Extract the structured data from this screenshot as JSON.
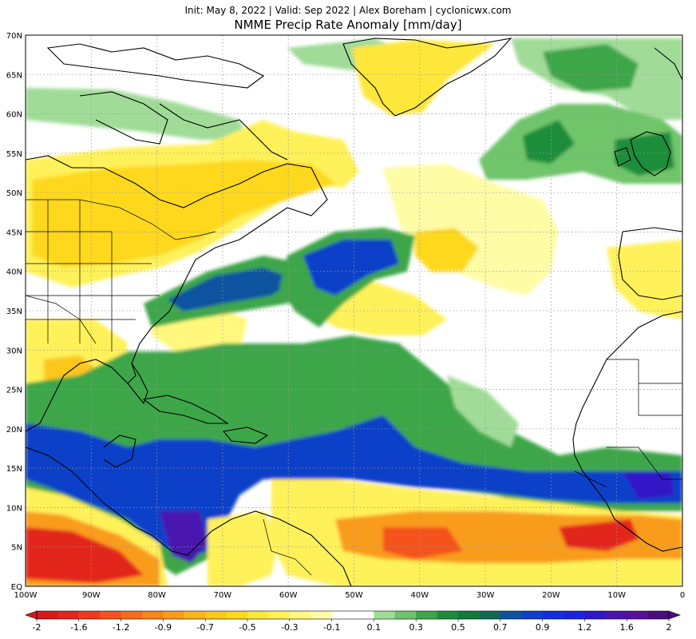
{
  "header": {
    "init_line": "Init: May 8, 2022 | Valid: Sep 2022 | Alex Boreham | cyclonicwx.com",
    "title": "NMME Precip Rate Anomaly [mm/day]"
  },
  "map": {
    "projection": "equirectangular",
    "lon_range": [
      -100,
      0
    ],
    "lat_range": [
      0,
      70
    ],
    "gridlines": "dotted",
    "lat_tick_labels": [
      "EQ",
      "5N",
      "10N",
      "15N",
      "20N",
      "25N",
      "30N",
      "35N",
      "40N",
      "45N",
      "50N",
      "55N",
      "60N",
      "65N",
      "70N"
    ],
    "lon_tick_labels": [
      "100W",
      "90W",
      "80W",
      "70W",
      "60W",
      "50W",
      "40W",
      "30W",
      "20W",
      "10W",
      "0"
    ],
    "lat_ticks": [
      0,
      5,
      10,
      15,
      20,
      25,
      30,
      35,
      40,
      45,
      50,
      55,
      60,
      65,
      70
    ],
    "lon_ticks": [
      -100,
      -90,
      -80,
      -70,
      -60,
      -50,
      -40,
      -30,
      -20,
      -10,
      0
    ]
  },
  "colorbar": {
    "labels": [
      "-2",
      "-1.6",
      "-1.2",
      "-0.9",
      "-0.7",
      "-0.5",
      "-0.3",
      "-0.1",
      "0.1",
      "0.3",
      "0.5",
      "0.7",
      "0.9",
      "1.2",
      "1.6",
      "2"
    ],
    "values": [
      -2,
      -1.8,
      -1.6,
      -1.4,
      -1.2,
      -1.05,
      -0.9,
      -0.8,
      -0.7,
      -0.6,
      -0.5,
      -0.4,
      -0.3,
      -0.2,
      -0.1,
      0,
      0.1,
      0.2,
      0.3,
      0.4,
      0.5,
      0.6,
      0.7,
      0.8,
      0.9,
      1.05,
      1.2,
      1.4,
      1.6,
      1.8,
      2
    ],
    "colors": [
      "#d7191c",
      "#e3261d",
      "#ee3a1e",
      "#f4531d",
      "#f76c1c",
      "#f8841b",
      "#f99c1b",
      "#fab31b",
      "#fbc71c",
      "#fdd81f",
      "#fee73a",
      "#fff15a",
      "#fff87d",
      "#fffca6",
      "#ffffff",
      "#ffffff",
      "#a0dc98",
      "#6fc46b",
      "#3ea64a",
      "#1c8d3a",
      "#12793a",
      "#0f6a52",
      "#1052a0",
      "#1040c8",
      "#1230e0",
      "#1a24e0",
      "#3018c8",
      "#4a14b0",
      "#5a0f9a",
      "#4b0c80"
    ]
  },
  "anomaly_regions": [
    {
      "label": "-2 .. -1.6",
      "color": "#e3261d"
    },
    {
      "label": "1.2 .. 2",
      "color": "#3a16c0"
    }
  ]
}
